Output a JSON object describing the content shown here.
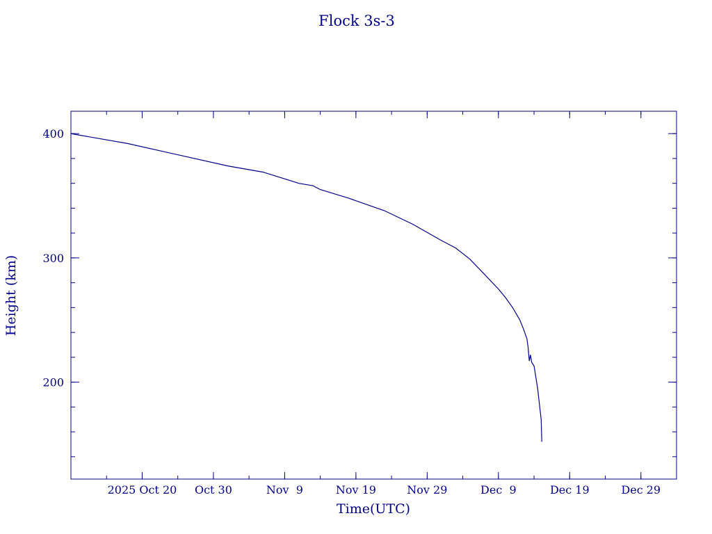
{
  "chart_data": {
    "type": "line",
    "title": "Flock 3s-3",
    "xlabel": "Time(UTC)",
    "ylabel": "Height (km)",
    "xlim": [
      "2025-10-10",
      "2026-01-03"
    ],
    "ylim": [
      122,
      418
    ],
    "x_ticks": [
      {
        "date": "2025-10-20",
        "label": "2025 Oct 20"
      },
      {
        "date": "2025-10-30",
        "label": "Oct 30"
      },
      {
        "date": "2025-11-09",
        "label": "Nov  9"
      },
      {
        "date": "2025-11-19",
        "label": "Nov 19"
      },
      {
        "date": "2025-11-29",
        "label": "Nov 29"
      },
      {
        "date": "2025-12-09",
        "label": "Dec  9"
      },
      {
        "date": "2025-12-19",
        "label": "Dec 19"
      },
      {
        "date": "2025-12-29",
        "label": "Dec 29"
      }
    ],
    "y_ticks": [
      200,
      300,
      400
    ],
    "grid": false,
    "color": "#00008b",
    "series": [
      {
        "x": [
          "2025-10-10T00:00",
          "2025-10-11T00:00",
          "2025-10-18T00:00",
          "2025-10-25T00:00",
          "2025-11-01T00:00",
          "2025-11-06T00:00",
          "2025-11-11T00:00",
          "2025-11-13T00:00",
          "2025-11-14T00:00",
          "2025-11-18T00:00",
          "2025-11-23T00:00",
          "2025-11-27T00:00",
          "2025-12-01T00:00",
          "2025-12-03T00:00",
          "2025-12-05T00:00",
          "2025-12-07T00:00",
          "2025-12-09T00:00",
          "2025-12-10T00:00",
          "2025-12-11T00:00",
          "2025-12-12T00:00",
          "2025-12-12T12:00",
          "2025-12-13T00:00",
          "2025-12-13T04:00",
          "2025-12-13T08:00",
          "2025-12-13T12:00",
          "2025-12-13T16:00",
          "2025-12-14T00:00",
          "2025-12-14T12:00",
          "2025-12-15T00:00",
          "2025-12-15T02:00"
        ],
        "y": [
          400,
          399,
          392,
          383,
          374,
          369,
          360,
          358,
          355,
          348,
          338,
          327,
          314,
          308,
          299,
          287,
          275,
          268,
          260,
          250,
          243,
          235,
          228,
          217,
          222,
          216,
          213,
          195,
          170,
          152
        ]
      }
    ]
  }
}
